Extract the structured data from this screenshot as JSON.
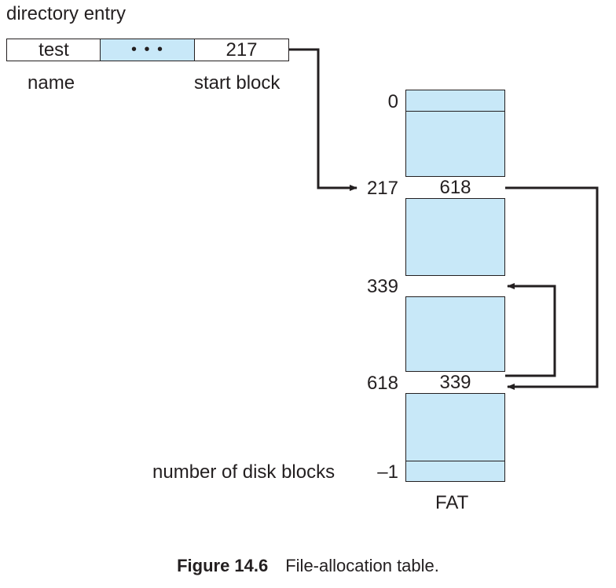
{
  "diagram": {
    "directory_label": "directory entry",
    "entry": {
      "name_value": "test",
      "dots": "• • •",
      "start_value": "217",
      "name_caption": "name",
      "start_caption": "start block"
    },
    "fat": {
      "label": "FAT",
      "size_label": "number of disk blocks",
      "rows": [
        {
          "index": "0",
          "value": ""
        },
        {
          "index": "217",
          "value": "618"
        },
        {
          "index": "339",
          "value": ""
        },
        {
          "index": "618",
          "value": "339"
        },
        {
          "index": "–1",
          "value": ""
        }
      ]
    },
    "colors": {
      "fill": "#c8e8f8",
      "line": "#231f20",
      "white": "#ffffff"
    }
  },
  "caption": {
    "figure": "Figure 14.6",
    "text": "File-allocation table."
  }
}
